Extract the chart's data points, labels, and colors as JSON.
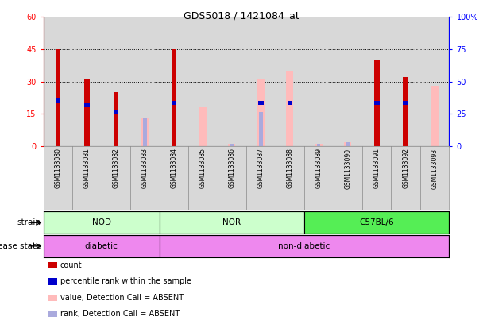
{
  "title": "GDS5018 / 1421084_at",
  "samples": [
    "GSM1133080",
    "GSM1133081",
    "GSM1133082",
    "GSM1133083",
    "GSM1133084",
    "GSM1133085",
    "GSM1133086",
    "GSM1133087",
    "GSM1133088",
    "GSM1133089",
    "GSM1133090",
    "GSM1133091",
    "GSM1133092",
    "GSM1133093"
  ],
  "count_values": [
    45,
    31,
    25,
    0,
    45,
    0,
    0,
    0,
    0,
    0,
    0,
    40,
    32,
    0
  ],
  "percentile_values": [
    21,
    19,
    16,
    0,
    20,
    0,
    0,
    20,
    20,
    0,
    0,
    20,
    20,
    0
  ],
  "absent_value_bars": [
    0,
    0,
    0,
    13,
    0,
    18,
    1,
    31,
    35,
    1,
    2,
    0,
    0,
    28
  ],
  "absent_rank_bars": [
    0,
    0,
    0,
    13,
    0,
    0,
    1,
    16,
    0,
    1,
    2,
    0,
    16,
    0
  ],
  "ylim_left": [
    0,
    60
  ],
  "ylim_right": [
    0,
    100
  ],
  "yticks_left": [
    0,
    15,
    30,
    45,
    60
  ],
  "yticks_right": [
    0,
    25,
    50,
    75,
    100
  ],
  "ytick_labels_right": [
    "0",
    "25",
    "50",
    "75",
    "100%"
  ],
  "count_color": "#cc0000",
  "percentile_color": "#0000cc",
  "absent_value_color": "#ffbbbb",
  "absent_rank_color": "#aaaadd",
  "plot_bg_color": "#d8d8d8",
  "xtick_bg_color": "#d8d8d8",
  "nod_nor_color": "#ccffcc",
  "c57_color": "#55ee55",
  "disease_color": "#ee88ee",
  "strain_label": "strain",
  "disease_label": "disease state",
  "legend_items": [
    {
      "label": "count",
      "color": "#cc0000"
    },
    {
      "label": "percentile rank within the sample",
      "color": "#0000cc"
    },
    {
      "label": "value, Detection Call = ABSENT",
      "color": "#ffbbbb"
    },
    {
      "label": "rank, Detection Call = ABSENT",
      "color": "#aaaadd"
    }
  ]
}
